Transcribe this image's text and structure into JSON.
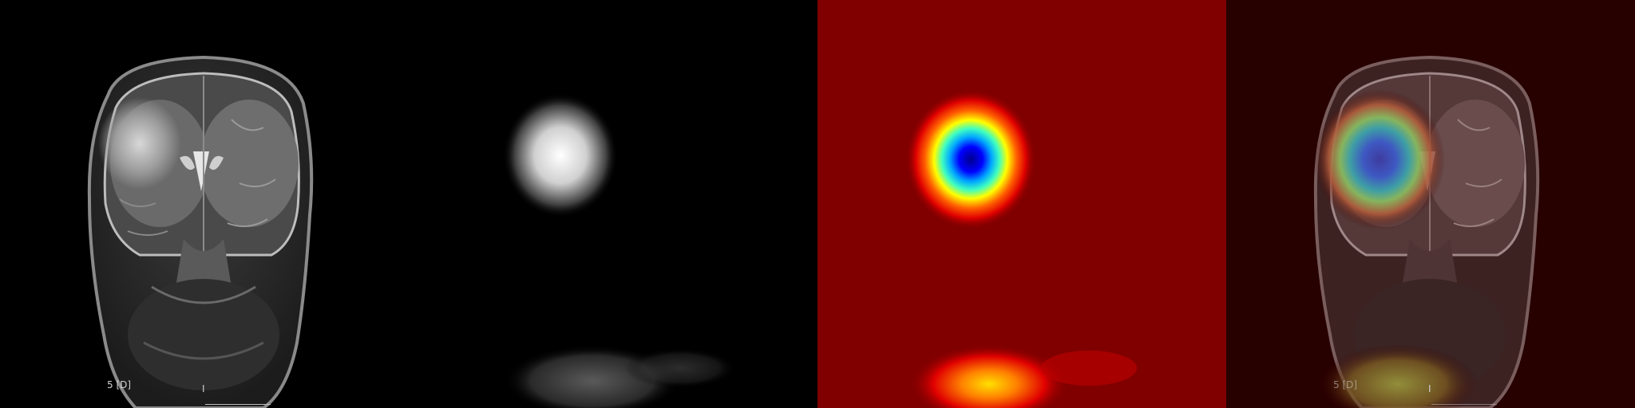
{
  "panels": {
    "mri": {
      "orientation_label": "5 [D]",
      "center_marker": "I"
    },
    "overlay": {
      "orientation_label": "5 [D]",
      "center_marker": "I"
    }
  },
  "colors": {
    "background": "#000000",
    "heatmap_low": "#800000",
    "heatmap_high": "#000080"
  }
}
